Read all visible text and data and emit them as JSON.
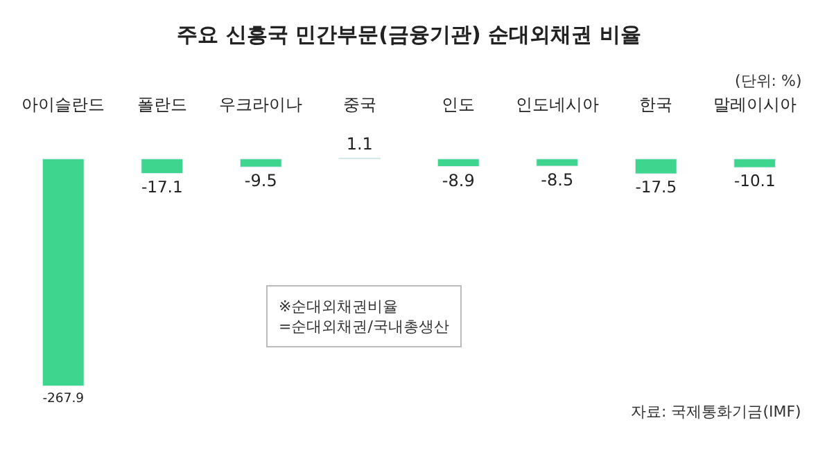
{
  "chart_data": {
    "type": "bar",
    "title": "주요 신흥국 민간부문(금융기관) 순대외채권 비율",
    "subtitle": "(단위: %)",
    "categories": [
      "아이슬란드",
      "폴란드",
      "우크라이나",
      "중국",
      "인도",
      "인도네시아",
      "한국",
      "말레이시아"
    ],
    "values": [
      -267.9,
      -17.1,
      -9.5,
      1.1,
      -8.9,
      -8.5,
      -17.5,
      -10.1
    ],
    "color": "#3ed68f",
    "data_labels": true,
    "annotations": [
      "※순대외채권비율\n=순대외채권/국내총생산",
      "자료: 국제통화기금(IMF)"
    ]
  }
}
